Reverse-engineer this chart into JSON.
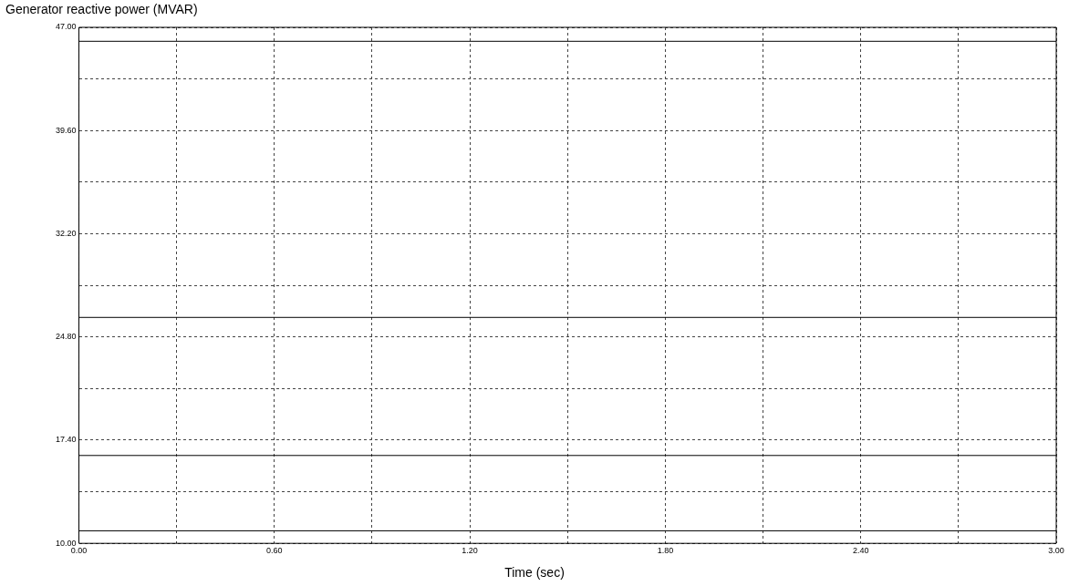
{
  "chart_data": {
    "type": "line",
    "ylabel": "Generator reactive power (MVAR)",
    "xlabel": "Time (sec)",
    "series": [
      {
        "color": "#000000",
        "values": [
          46.0,
          46.0
        ]
      },
      {
        "color": "#000000",
        "values": [
          26.2,
          26.2
        ]
      },
      {
        "color": "#000000",
        "values": [
          16.3,
          16.3
        ]
      },
      {
        "color": "#000000",
        "values": [
          10.9,
          10.9
        ]
      }
    ],
    "x": [
      0,
      3
    ],
    "xlim": [
      0,
      3
    ],
    "ylim": [
      10,
      47
    ],
    "xticks": [
      {
        "value": 0,
        "label": "0.00"
      },
      {
        "value": 0.3,
        "label": null
      },
      {
        "value": 0.6,
        "label": "0.60"
      },
      {
        "value": 0.9,
        "label": null
      },
      {
        "value": 1.2,
        "label": "1.20"
      },
      {
        "value": 1.5,
        "label": null
      },
      {
        "value": 1.8,
        "label": "1.80"
      },
      {
        "value": 2.1,
        "label": null
      },
      {
        "value": 2.4,
        "label": "2.40"
      },
      {
        "value": 2.7,
        "label": null
      },
      {
        "value": 3,
        "label": "3.00"
      }
    ],
    "yticks": [
      {
        "value": 10,
        "label": "10.00"
      },
      {
        "value": 13.7,
        "label": null
      },
      {
        "value": 17.4,
        "label": "17.40"
      },
      {
        "value": 21.1,
        "label": null
      },
      {
        "value": 24.8,
        "label": "24.80"
      },
      {
        "value": 28.5,
        "label": null
      },
      {
        "value": 32.2,
        "label": "32.20"
      },
      {
        "value": 35.9,
        "label": null
      },
      {
        "value": 39.6,
        "label": "39.60"
      },
      {
        "value": 43.3,
        "label": null
      },
      {
        "value": 47,
        "label": "47.00"
      }
    ],
    "grid": true,
    "legend": false,
    "marker": "none",
    "line_style": "solid"
  }
}
